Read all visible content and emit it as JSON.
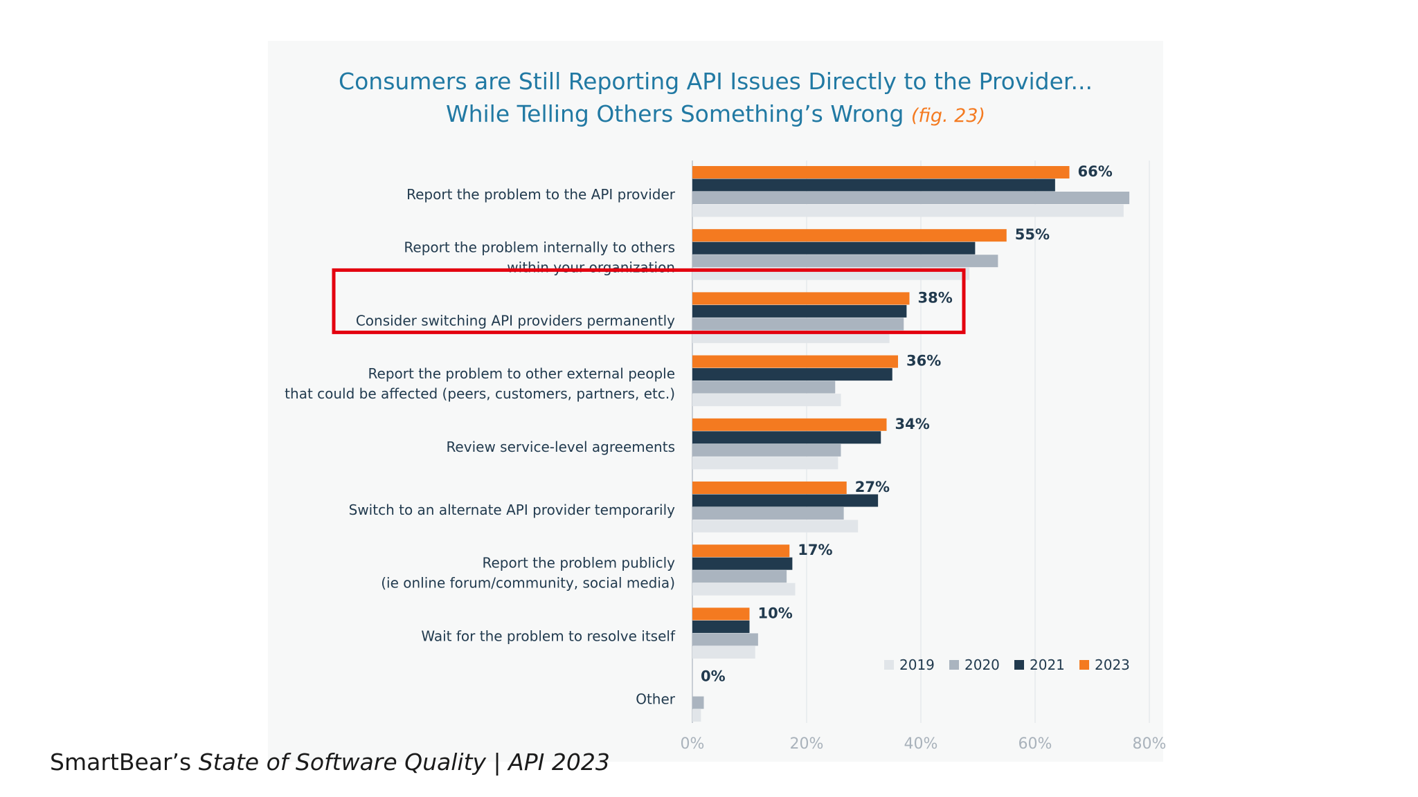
{
  "chart_data": {
    "type": "bar",
    "orientation": "horizontal",
    "title_line1": "Consumers are Still Reporting API Issues Directly to the Provider...",
    "title_line2": "While Telling Others Something’s Wrong",
    "fig_label": "(fig. 23)",
    "categories": [
      [
        "Report the problem to the API provider"
      ],
      [
        "Report the problem internally to others",
        "within your organization"
      ],
      [
        "Consider switching API providers permanently"
      ],
      [
        "Report the problem to other external people",
        "that could be affected (peers, customers, partners, etc.)"
      ],
      [
        "Review service-level agreements"
      ],
      [
        "Switch to an alternate API provider temporarily"
      ],
      [
        "Report the problem publicly",
        "(ie online forum/community, social media)"
      ],
      [
        "Wait for the problem to resolve itself"
      ],
      [
        "Other"
      ]
    ],
    "series": [
      {
        "name": "2023",
        "color": "#f47a20",
        "values": [
          66,
          55,
          38,
          36,
          34,
          27,
          17,
          10,
          0
        ]
      },
      {
        "name": "2021",
        "color": "#213a4e",
        "values": [
          63.5,
          49.5,
          37.5,
          35,
          33,
          32.5,
          17.5,
          10,
          null
        ]
      },
      {
        "name": "2020",
        "color": "#aab4bf",
        "values": [
          76.5,
          53.5,
          37,
          25,
          26,
          26.5,
          16.5,
          11.5,
          2
        ]
      },
      {
        "name": "2019",
        "color": "#e1e5e9",
        "values": [
          75.5,
          48.5,
          34.5,
          26,
          25.5,
          29,
          18,
          11,
          1.5
        ]
      }
    ],
    "data_labels": [
      "66%",
      "55%",
      "38%",
      "36%",
      "34%",
      "27%",
      "17%",
      "10%",
      "0%"
    ],
    "x_ticks": [
      "0%",
      "20%",
      "40%",
      "60%",
      "80%"
    ],
    "xlim": [
      0,
      80
    ],
    "grid": true,
    "legend": [
      "2019",
      "2020",
      "2021",
      "2023"
    ],
    "legend_position": "bottom-right",
    "highlighted_category_index": 2,
    "highlight_color": "#e3000f"
  },
  "caption": {
    "prefix": "SmartBear’s ",
    "italic": "State of Software Quality | API 2023"
  }
}
